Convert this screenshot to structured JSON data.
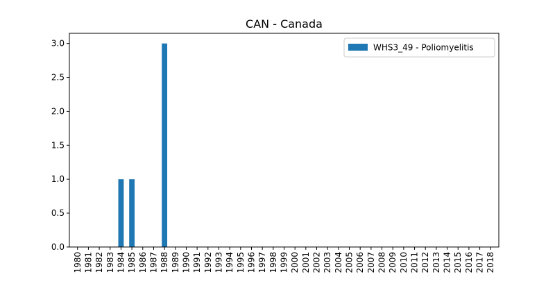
{
  "chart_data": {
    "type": "bar",
    "title": "CAN - Canada",
    "xlabel": "",
    "ylabel": "",
    "categories": [
      "1980",
      "1981",
      "1982",
      "1983",
      "1984",
      "1985",
      "1986",
      "1987",
      "1988",
      "1989",
      "1990",
      "1991",
      "1992",
      "1993",
      "1994",
      "1995",
      "1996",
      "1997",
      "1998",
      "1999",
      "2000",
      "2001",
      "2002",
      "2003",
      "2004",
      "2005",
      "2006",
      "2007",
      "2008",
      "2009",
      "2010",
      "2011",
      "2012",
      "2013",
      "2014",
      "2015",
      "2016",
      "2017",
      "2018"
    ],
    "series": [
      {
        "name": "WHS3_49 - Poliomyelitis",
        "color": "#1f77b4",
        "values": [
          0,
          0,
          0,
          0,
          1,
          1,
          0,
          0,
          3,
          0,
          0,
          0,
          0,
          0,
          0,
          0,
          0,
          0,
          0,
          0,
          0,
          0,
          0,
          0,
          0,
          0,
          0,
          0,
          0,
          0,
          0,
          0,
          0,
          0,
          0,
          0,
          0,
          0,
          0
        ]
      }
    ],
    "ylim": [
      0,
      3.15
    ],
    "yticks": [
      "0.0",
      "0.5",
      "1.0",
      "1.5",
      "2.0",
      "2.5",
      "3.0"
    ],
    "grid": false,
    "legend_position": "top-right"
  }
}
